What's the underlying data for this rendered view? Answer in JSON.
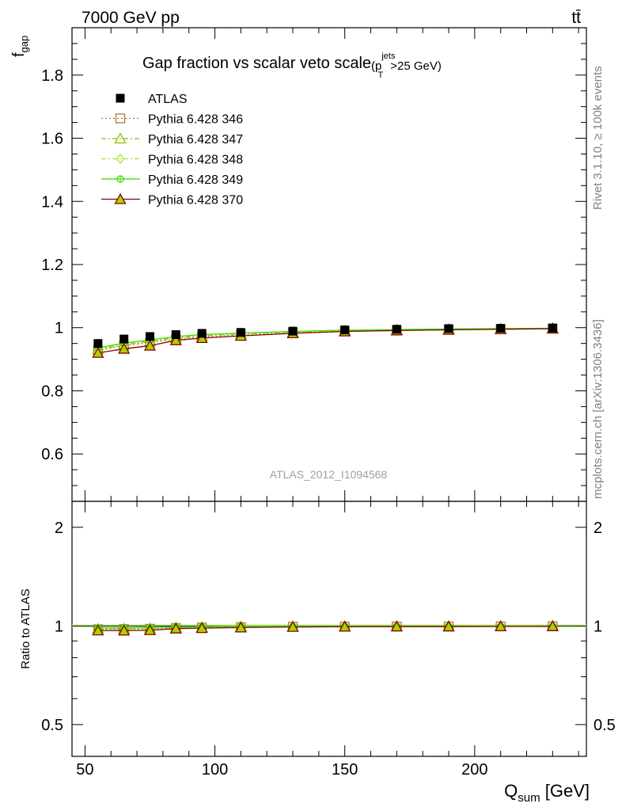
{
  "header": {
    "energy_label": "7000 GeV pp",
    "process_label": "tt̄"
  },
  "side": {
    "rivet_label": "Rivet 3.1.10, ≥ 100k events",
    "mcplots_label": "mcplots.cern.ch [arXiv:1306.3436]"
  },
  "chart_data": {
    "type": "scatter",
    "title": "Gap fraction vs scalar veto scale",
    "title_cut": {
      "prefix": "(p",
      "sup": "jets",
      "sub": "T",
      "suffix": ">25 GeV)"
    },
    "watermark": "ATLAS_2012_I1094568",
    "xlabel": {
      "main": "Q",
      "sub": "sum",
      "unit": " [GeV]"
    },
    "ylabel": {
      "main": "f",
      "sub": "gap"
    },
    "ratio_ylabel": "Ratio to ATLAS",
    "xlim": [
      45,
      243
    ],
    "ylim": [
      0.45,
      1.95
    ],
    "ratio_ylim": [
      0.4,
      2.4
    ],
    "x_ticks": [
      "50",
      "100",
      "150",
      "200"
    ],
    "y_ticks": [
      "0.6",
      "0.8",
      "1",
      "1.2",
      "1.4",
      "1.6",
      "1.8"
    ],
    "ratio_ticks": [
      "0.5",
      "1",
      "2"
    ],
    "x": [
      55,
      65,
      75,
      85,
      95,
      110,
      130,
      150,
      170,
      190,
      210,
      230
    ],
    "series": [
      {
        "name": "ATLAS",
        "marker": "square-filled",
        "color": "#000000",
        "line": "none",
        "values": [
          0.95,
          0.964,
          0.972,
          0.978,
          0.982,
          0.985,
          0.989,
          0.993,
          0.995,
          0.997,
          0.998,
          0.999
        ]
      },
      {
        "name": "Pythia 6.428 346",
        "marker": "square-open",
        "color": "#b07a3b",
        "line": "dotted",
        "values": [
          0.928,
          0.943,
          0.953,
          0.964,
          0.971,
          0.977,
          0.984,
          0.988,
          0.991,
          0.993,
          0.995,
          0.997
        ]
      },
      {
        "name": "Pythia 6.428 347",
        "marker": "triangle-open",
        "color": "#8fbc00",
        "line": "dashdot",
        "values": [
          0.931,
          0.946,
          0.956,
          0.967,
          0.974,
          0.98,
          0.986,
          0.99,
          0.993,
          0.995,
          0.996,
          0.998
        ]
      },
      {
        "name": "Pythia 6.428 348",
        "marker": "diamond-open",
        "color": "#a6e22e",
        "line": "dashdot",
        "values": [
          0.933,
          0.948,
          0.958,
          0.969,
          0.976,
          0.981,
          0.987,
          0.991,
          0.993,
          0.995,
          0.997,
          0.998
        ]
      },
      {
        "name": "Pythia 6.428 349",
        "marker": "circle-plus",
        "color": "#33dd00",
        "line": "solid",
        "values": [
          0.936,
          0.951,
          0.961,
          0.972,
          0.978,
          0.983,
          0.988,
          0.992,
          0.994,
          0.996,
          0.997,
          0.998
        ]
      },
      {
        "name": "Pythia 6.428 370",
        "marker": "triangle-open",
        "color": "#8b0000",
        "line": "solid",
        "values": [
          0.92,
          0.933,
          0.943,
          0.96,
          0.967,
          0.974,
          0.982,
          0.988,
          0.991,
          0.993,
          0.995,
          0.997
        ]
      }
    ]
  }
}
